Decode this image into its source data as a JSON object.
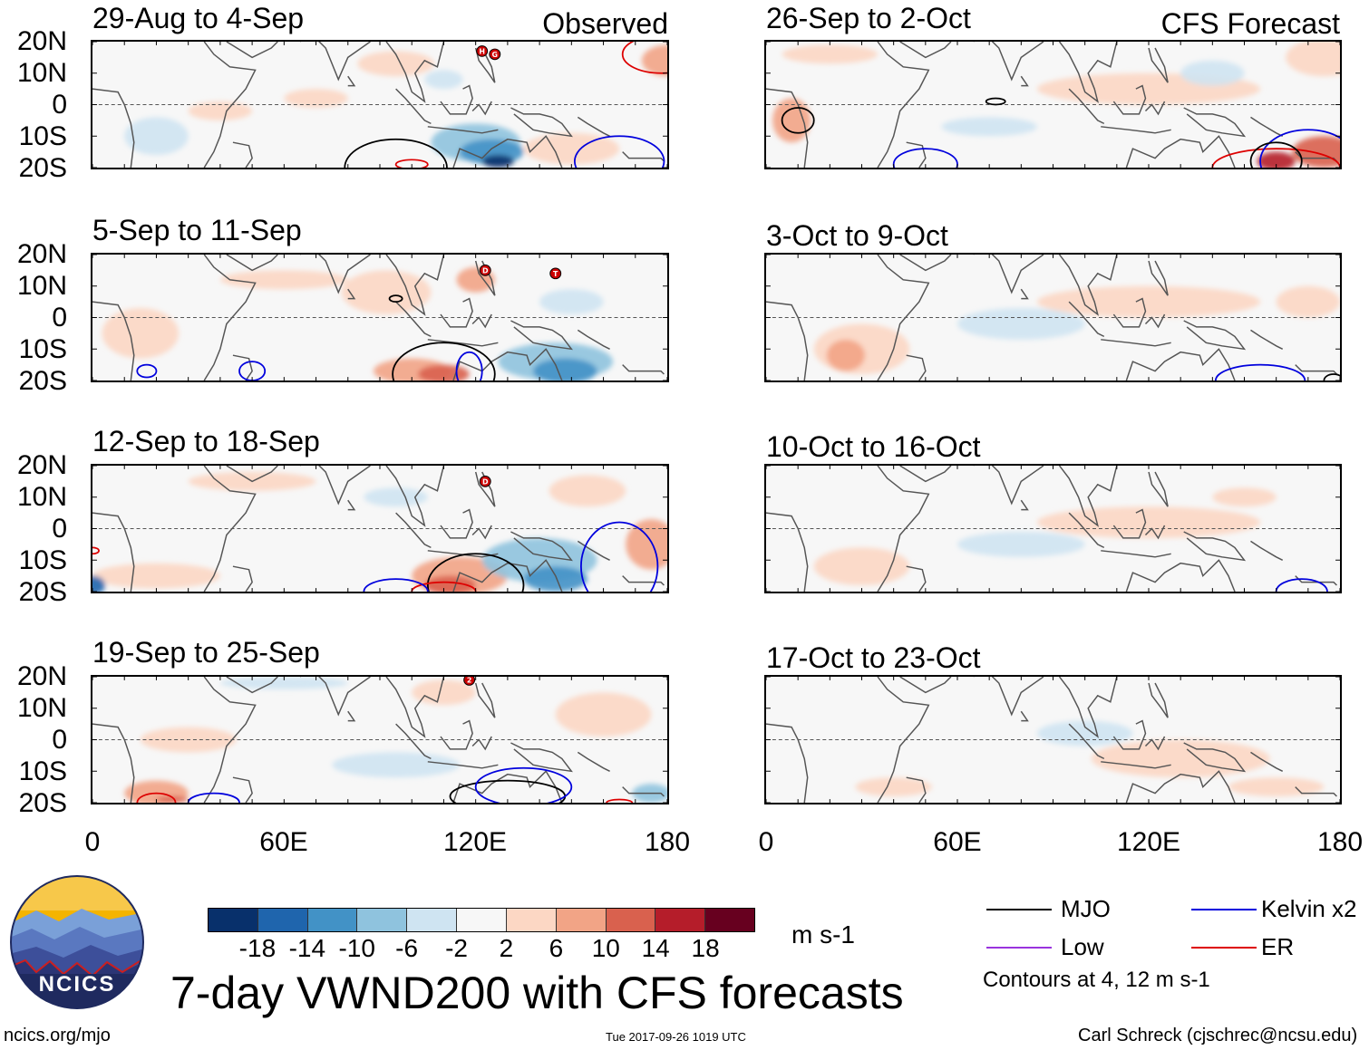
{
  "observed_label": "Observed",
  "forecast_label": "CFS Forecast",
  "lat_labels": [
    "20N",
    "10N",
    "0",
    "10S",
    "20S"
  ],
  "lon_labels": [
    "0",
    "60E",
    "120E",
    "180"
  ],
  "panels": [
    {
      "title": "29-Aug to 4-Sep",
      "kind": "observed"
    },
    {
      "title": "5-Sep to 11-Sep",
      "kind": "observed"
    },
    {
      "title": "12-Sep to 18-Sep",
      "kind": "observed"
    },
    {
      "title": "19-Sep to 25-Sep",
      "kind": "observed"
    },
    {
      "title": "26-Sep to 2-Oct",
      "kind": "forecast"
    },
    {
      "title": "3-Oct to 9-Oct",
      "kind": "forecast"
    },
    {
      "title": "10-Oct to 16-Oct",
      "kind": "forecast"
    },
    {
      "title": "17-Oct to 23-Oct",
      "kind": "forecast"
    }
  ],
  "storm_markers": [
    {
      "panel": 0,
      "letter": "H"
    },
    {
      "panel": 0,
      "letter": "G"
    },
    {
      "panel": 1,
      "letter": "D"
    },
    {
      "panel": 1,
      "letter": "T"
    },
    {
      "panel": 2,
      "letter": "D"
    },
    {
      "panel": 3,
      "letter": "2"
    }
  ],
  "colorbar": {
    "colors": [
      "#08306b",
      "#1f65ad",
      "#4292c6",
      "#8fc3de",
      "#cfe4f2",
      "#f7f7f7",
      "#fcd7c4",
      "#f2a486",
      "#d9614e",
      "#b51d2a",
      "#67001f"
    ],
    "labels": [
      "-18",
      "-14",
      "-10",
      "-6",
      "-2",
      "2",
      "6",
      "10",
      "14",
      "18"
    ],
    "units": "m s-1"
  },
  "legend": {
    "items": [
      {
        "label": "MJO",
        "color": "#000000"
      },
      {
        "label": "Kelvin x2",
        "color": "#0000dd"
      },
      {
        "label": "Low",
        "color": "#9933dd"
      },
      {
        "label": "ER",
        "color": "#dd0000"
      }
    ],
    "contour_note": "Contours at 4, 12 m s-1"
  },
  "main_title": "7-day VWND200 with CFS forecasts",
  "logo_text": "NCICS",
  "site_url": "ncics.org/mjo",
  "timestamp": "Tue 2017-09-26 1019 UTC",
  "credit": "Carl Schreck (cjschrec@ncsu.edu)"
}
